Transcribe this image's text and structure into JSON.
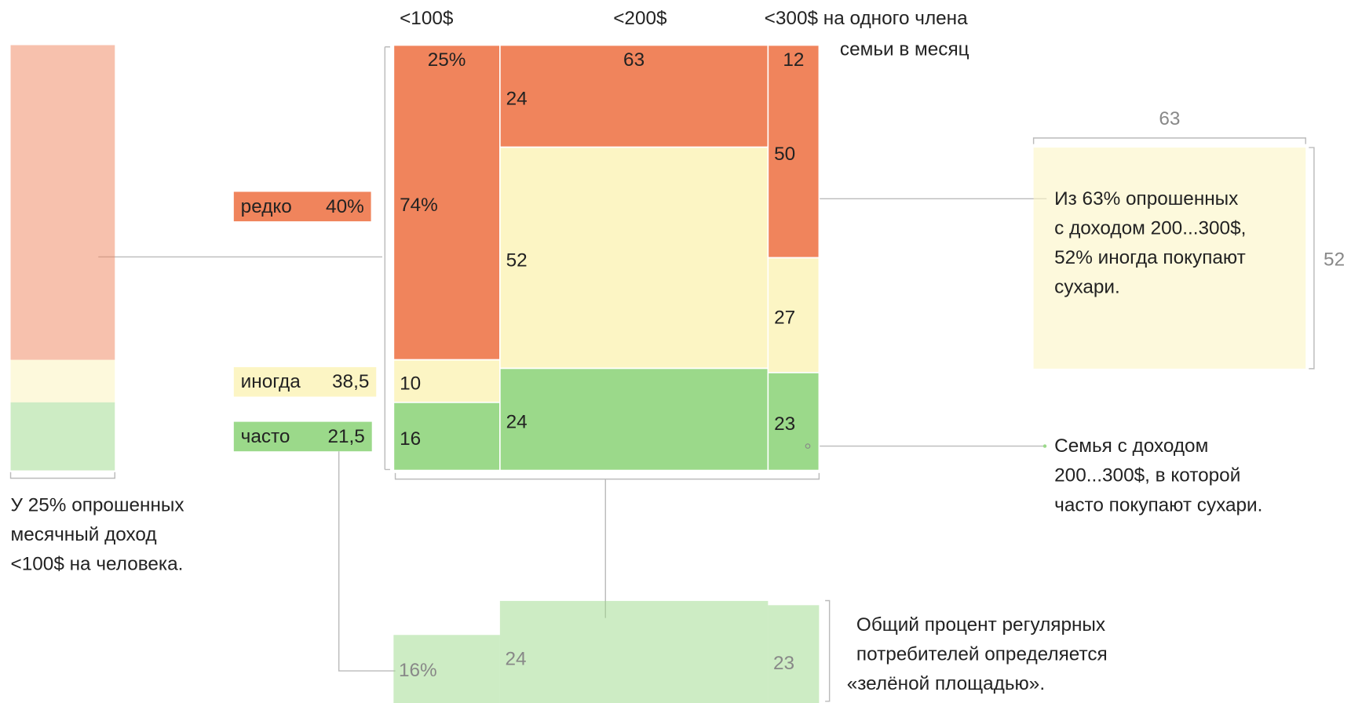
{
  "chart_data": {
    "type": "mosaic",
    "column_headers": [
      "<100$",
      "<200$",
      "<300$ на одного члена"
    ],
    "header_note": "семьи в месяц",
    "widths": [
      25,
      63,
      12
    ],
    "width_labels": [
      "25%",
      "63",
      "12"
    ],
    "series": [
      {
        "name": "редко",
        "color": "#f0845c",
        "values": [
          74,
          24,
          50
        ],
        "value_labels": [
          "74%",
          "24",
          "50"
        ]
      },
      {
        "name": "иногда",
        "color": "#fcf5c4",
        "values": [
          10,
          52,
          27
        ]
      },
      {
        "name": "часто",
        "color": "#9bd98a",
        "values": [
          16,
          24,
          23
        ]
      }
    ],
    "totals": {
      "values": [
        40,
        38.5,
        21.5
      ],
      "value_labels": [
        "40%",
        "38,5",
        "21,5"
      ]
    },
    "strip_labels": [
      "16%",
      "24",
      "23"
    ],
    "left_note": [
      "У 25% опрошенных",
      "месячный доход",
      "<100$ на человека."
    ],
    "callout": {
      "width": 63,
      "height": 52,
      "lines": [
        "Из 63% опрошенных",
        "с доходом 200...300$,",
        "52% иногда покупают",
        "сухари."
      ]
    },
    "cell_note": [
      "Семья с доходом",
      "200...300$, в которой",
      "часто покупают сухари."
    ],
    "bottom_note": [
      "Общий процент регулярных",
      "потребителей определяется",
      "«зелёной площадью»."
    ]
  }
}
